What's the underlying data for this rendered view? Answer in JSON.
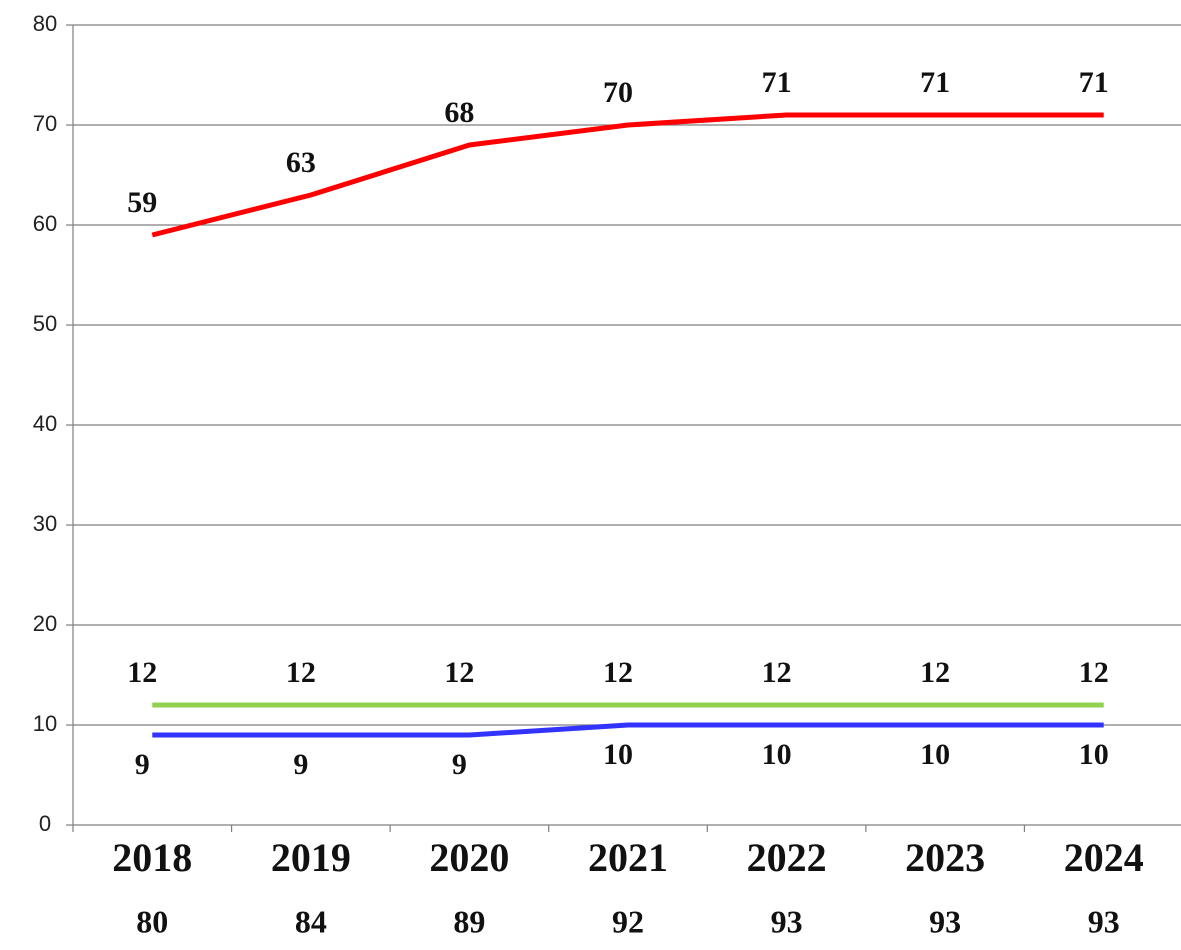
{
  "chart_data": {
    "type": "line",
    "categories": [
      "2018",
      "2019",
      "2020",
      "2021",
      "2022",
      "2023",
      "2024"
    ],
    "series": [
      {
        "color": "#ff0000",
        "label_position": "above",
        "values": [
          59,
          63,
          68,
          70,
          71,
          71,
          71
        ]
      },
      {
        "color": "#92d050",
        "label_position": "above",
        "values": [
          12,
          12,
          12,
          12,
          12,
          12,
          12
        ]
      },
      {
        "color": "#3333ff",
        "label_position": "below",
        "values": [
          9,
          9,
          9,
          10,
          10,
          10,
          10
        ]
      }
    ],
    "totals": [
      80,
      84,
      89,
      92,
      93,
      93,
      93
    ],
    "ylim": [
      0,
      80
    ],
    "yticks": [
      0,
      10,
      20,
      30,
      40,
      50,
      60,
      70,
      80
    ],
    "grid": true
  }
}
